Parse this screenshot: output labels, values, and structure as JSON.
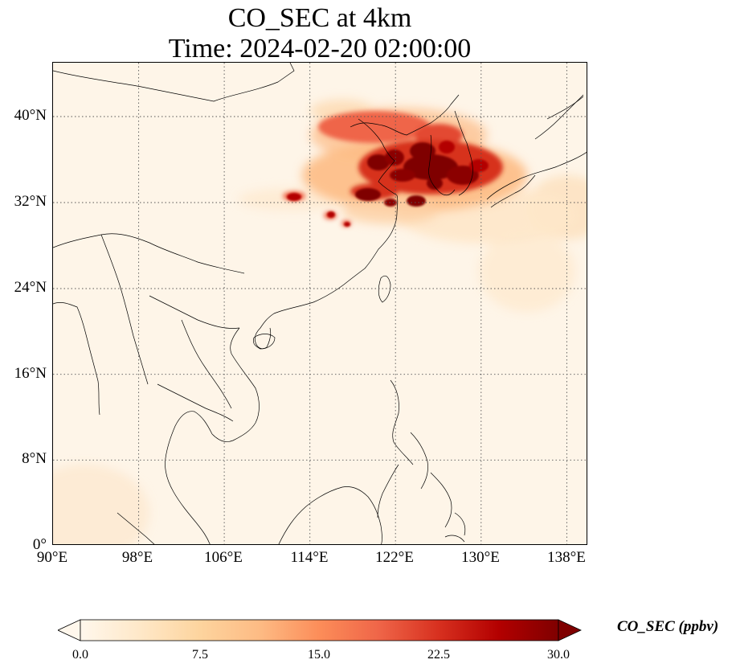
{
  "title_line1": "CO_SEC at 4km",
  "title_line2": "Time: 2024-02-20 02:00:00",
  "lat_labels": [
    "40°N",
    "32°N",
    "24°N",
    "16°N",
    "8°N",
    "0°"
  ],
  "lon_labels": [
    "90°E",
    "98°E",
    "106°E",
    "114°E",
    "122°E",
    "130°E",
    "138°E"
  ],
  "colorbar": {
    "label": "CO_SEC (ppbv)",
    "ticks": [
      "0.0",
      "7.5",
      "15.0",
      "22.5",
      "30.0"
    ],
    "min": 0,
    "max": 30,
    "extend": "both",
    "colormap": "OrRd",
    "colors": [
      "#fff7ec",
      "#fee8c8",
      "#fdd49e",
      "#fdbb84",
      "#fc8d59",
      "#ef6548",
      "#d7301f",
      "#b30000",
      "#7f0000"
    ]
  },
  "map": {
    "lon_range": [
      90,
      140
    ],
    "lat_range": [
      0,
      45
    ],
    "gridlines": "dotted",
    "background_color": "#fef5e8",
    "coastline_color": "#000000"
  }
}
